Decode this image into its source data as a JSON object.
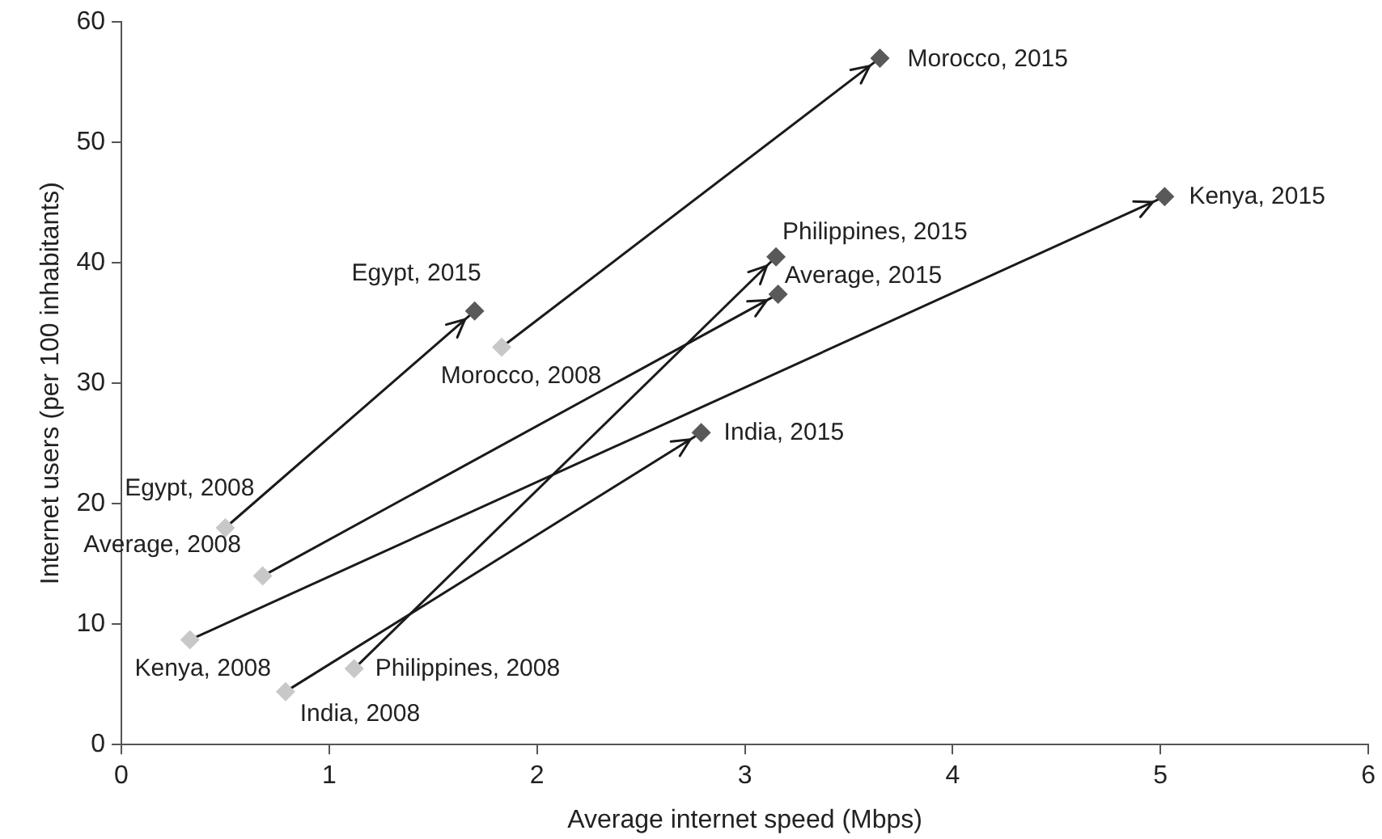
{
  "chart_data": {
    "type": "scatter",
    "xlabel": "Average internet speed (Mbps)",
    "ylabel": "Internet users (per 100 inhabitants)",
    "xlim": [
      0,
      6
    ],
    "xticks": [
      0,
      1,
      2,
      3,
      4,
      5,
      6
    ],
    "ylim": [
      0,
      60
    ],
    "yticks": [
      0,
      10,
      20,
      30,
      40,
      50,
      60
    ],
    "grid": false,
    "legend": false,
    "marker": "diamond",
    "series": [
      {
        "type": "line",
        "color": "#1a1a1a",
        "x": [
          0.5,
          1.7
        ],
        "values": [
          18,
          36
        ],
        "marker": "none"
      },
      {
        "type": "line",
        "color": "#1a1a1a",
        "x": [
          1.83,
          3.65
        ],
        "values": [
          33,
          57
        ],
        "marker": "none"
      },
      {
        "type": "line",
        "color": "#1a1a1a",
        "x": [
          1.12,
          3.15
        ],
        "values": [
          6.3,
          40.5
        ],
        "marker": "none"
      },
      {
        "type": "line",
        "color": "#1a1a1a",
        "x": [
          0.68,
          3.16
        ],
        "values": [
          14,
          37.4
        ],
        "marker": "none"
      },
      {
        "type": "line",
        "color": "#1a1a1a",
        "x": [
          0.33,
          5.02
        ],
        "values": [
          8.7,
          45.5
        ],
        "marker": "none"
      },
      {
        "type": "line",
        "color": "#1a1a1a",
        "x": [
          0.79,
          2.79
        ],
        "values": [
          4.4,
          25.9
        ],
        "marker": "none"
      },
      {
        "color": "#c8c8c8",
        "x": [
          0.5,
          1.83,
          1.12,
          0.68,
          0.33,
          0.79
        ],
        "values": [
          18,
          33,
          6.3,
          14,
          8.7,
          4.4
        ]
      },
      {
        "color": "#595959",
        "x": [
          1.7,
          3.65,
          3.15,
          3.16,
          5.02,
          2.79
        ],
        "values": [
          36,
          57,
          40.5,
          37.4,
          45.5,
          25.9
        ]
      }
    ],
    "annotations": [
      {
        "text": "Egypt, 2008",
        "x": 0.5,
        "y": 18
      },
      {
        "text": "Egypt, 2015",
        "x": 1.7,
        "y": 36
      },
      {
        "text": "Morocco, 2008",
        "x": 1.83,
        "y": 33
      },
      {
        "text": "Morocco, 2015",
        "x": 3.65,
        "y": 57
      },
      {
        "text": "Philippines, 2008",
        "x": 1.12,
        "y": 6.3
      },
      {
        "text": "Philippines, 2015",
        "x": 3.15,
        "y": 40.5
      },
      {
        "text": "Average, 2008",
        "x": 0.68,
        "y": 14
      },
      {
        "text": "Average, 2015",
        "x": 3.16,
        "y": 37.4
      },
      {
        "text": "Kenya, 2008",
        "x": 0.33,
        "y": 8.7
      },
      {
        "text": "Kenya, 2015",
        "x": 5.02,
        "y": 45.5
      },
      {
        "text": "India, 2008",
        "x": 0.79,
        "y": 4.4
      },
      {
        "text": "India, 2015",
        "x": 2.79,
        "y": 25.9
      }
    ]
  }
}
